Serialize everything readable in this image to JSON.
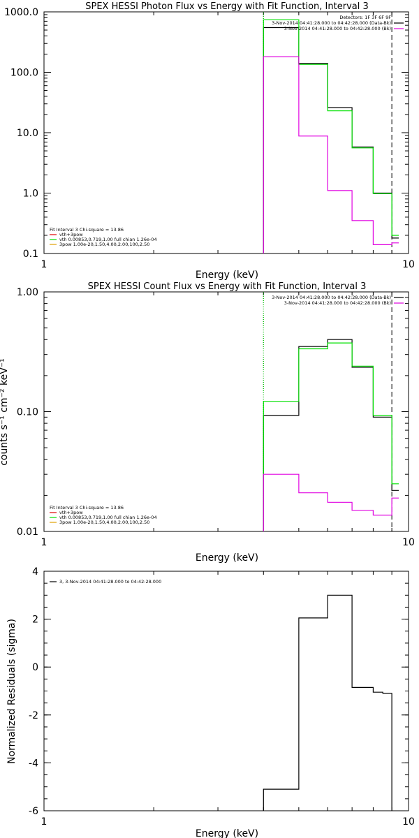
{
  "colors": {
    "black": "#000000",
    "green": "#00e000",
    "magenta": "#e000e0",
    "red": "#e00000",
    "orange": "#e0a000"
  },
  "chart_data": [
    {
      "type": "line",
      "step": true,
      "title": "SPEX HESSI Photon Flux vs Energy with Fit Function, Interval 3",
      "xlabel": "Energy (keV)",
      "ylabel": "",
      "xscale": "log",
      "yscale": "log",
      "xlim": [
        1,
        10
      ],
      "ylim": [
        0.1,
        1000
      ],
      "xticks": [
        {
          "v": 1,
          "label": "1"
        },
        {
          "v": 10,
          "label": "10"
        }
      ],
      "yticks": [
        {
          "v": 0.1,
          "label": "0.1"
        },
        {
          "v": 1,
          "label": "1.0"
        },
        {
          "v": 10,
          "label": "10.0"
        },
        {
          "v": 100,
          "label": "100.0"
        },
        {
          "v": 1000,
          "label": "1000.0"
        }
      ],
      "edges": [
        4,
        5,
        6,
        7,
        8,
        9
      ],
      "vlines": [
        {
          "x": 4,
          "color": "#000000",
          "dash": "1,2"
        },
        {
          "x": 4,
          "color": "#00e000",
          "dash": "1,2"
        },
        {
          "x": 9,
          "color": "#000000",
          "dash": "7,4"
        }
      ],
      "series": [
        {
          "color": "#000000",
          "bins": [
            [
              4,
              5,
              550
            ],
            [
              5,
              6,
              140
            ],
            [
              6,
              7,
              26
            ],
            [
              7,
              8,
              5.8
            ],
            [
              8,
              9,
              1.0
            ],
            [
              9,
              9.4,
              0.18
            ]
          ]
        },
        {
          "color": "#00e000",
          "bins": [
            [
              4,
              5,
              740
            ],
            [
              5,
              6,
              135
            ],
            [
              6,
              7,
              23
            ],
            [
              7,
              8,
              5.6
            ],
            [
              8,
              9,
              0.98
            ],
            [
              9,
              9.4,
              0.2
            ]
          ]
        },
        {
          "color": "#e000e0",
          "bins": [
            [
              4,
              5,
              180
            ],
            [
              5,
              6,
              8.8
            ],
            [
              6,
              7,
              1.1
            ],
            [
              7,
              8,
              0.35
            ],
            [
              8,
              9,
              0.14
            ],
            [
              9,
              9.4,
              0.15
            ]
          ]
        }
      ],
      "legend_right": {
        "header": "Detectors: 1F 3F 6F 9F",
        "entries": [
          {
            "text": "3-Nov-2014 04:41:28.000 to 04:42:28.000 (Data-Bk)",
            "color": "#000000"
          },
          {
            "text": "3-Nov-2014 04:41:28.000 to 04:42:28.000 (Bk)",
            "color": "#e000e0"
          }
        ]
      },
      "legend_left": {
        "header": "Fit Interval 3   Chi-square = 13.86",
        "entries": [
          {
            "text": "vth+3pow",
            "color": "#e00000"
          },
          {
            "text": "vth 0.00853,0.719,1.00  full chian 1.26e-04",
            "color": "#00e000"
          },
          {
            "text": "3pow 1.00e-20,1.50,4.00,2.00,100,2.50",
            "color": "#e0a000"
          }
        ]
      }
    },
    {
      "type": "line",
      "step": true,
      "title": "SPEX HESSI Count Flux vs Energy with Fit Function, Interval 3",
      "xlabel": "Energy (keV)",
      "ylabel": "counts s⁻¹ cm⁻² keV⁻¹",
      "xscale": "log",
      "yscale": "log",
      "xlim": [
        1,
        10
      ],
      "ylim": [
        0.01,
        1
      ],
      "xticks": [
        {
          "v": 1,
          "label": "1"
        },
        {
          "v": 10,
          "label": "10"
        }
      ],
      "yticks": [
        {
          "v": 0.01,
          "label": "0.01"
        },
        {
          "v": 0.1,
          "label": "0.10"
        },
        {
          "v": 1,
          "label": "1.00"
        }
      ],
      "edges": [
        4,
        5,
        6,
        7,
        8,
        9
      ],
      "vlines": [
        {
          "x": 4,
          "color": "#000000",
          "dash": "1,2"
        },
        {
          "x": 4,
          "color": "#00e000",
          "dash": "1,2"
        },
        {
          "x": 9,
          "color": "#000000",
          "dash": "7,4"
        }
      ],
      "series": [
        {
          "color": "#000000",
          "bins": [
            [
              4,
              5,
              0.093
            ],
            [
              5,
              6,
              0.35
            ],
            [
              6,
              7,
              0.4
            ],
            [
              7,
              8,
              0.235
            ],
            [
              8,
              9,
              0.09
            ],
            [
              9,
              9.4,
              0.022
            ]
          ]
        },
        {
          "color": "#00e000",
          "bins": [
            [
              4,
              5,
              0.122
            ],
            [
              5,
              6,
              0.335
            ],
            [
              6,
              7,
              0.375
            ],
            [
              7,
              8,
              0.24
            ],
            [
              8,
              9,
              0.093
            ],
            [
              9,
              9.4,
              0.025
            ]
          ]
        },
        {
          "color": "#e000e0",
          "bins": [
            [
              4,
              5,
              0.03
            ],
            [
              5,
              6,
              0.021
            ],
            [
              6,
              7,
              0.0175
            ],
            [
              7,
              8,
              0.015
            ],
            [
              8,
              9,
              0.0137
            ],
            [
              9,
              9.4,
              0.019
            ]
          ]
        }
      ],
      "legend_right": {
        "header": "",
        "entries": [
          {
            "text": "3-Nov-2014 04:41:28.000 to 04:42:28.000 (Data-Bk)",
            "color": "#000000"
          },
          {
            "text": "3-Nov-2014 04:41:28.000 to 04:42:28.000 (Bk)",
            "color": "#e000e0"
          }
        ]
      },
      "legend_left": {
        "header": "Fit Interval 3   Chi-square = 13.86",
        "entries": [
          {
            "text": "vth+3pow",
            "color": "#e00000"
          },
          {
            "text": "vth 0.00853,0.719,1.00  full chian 1.26e-04",
            "color": "#00e000"
          },
          {
            "text": "3pow 1.00e-20,1.50,4.00,2.00,100,2.50",
            "color": "#e0a000"
          }
        ]
      }
    },
    {
      "type": "line",
      "step": true,
      "title": "",
      "xlabel": "Energy (keV)",
      "ylabel": "Normalized Residuals (sigma)",
      "xscale": "log",
      "yscale": "linear",
      "xlim": [
        1,
        10
      ],
      "ylim": [
        -6,
        4
      ],
      "xticks": [
        {
          "v": 1,
          "label": "1"
        },
        {
          "v": 10,
          "label": "10"
        }
      ],
      "yticks": [
        {
          "v": -6,
          "label": "-6"
        },
        {
          "v": -4,
          "label": "-4"
        },
        {
          "v": -2,
          "label": "-2"
        },
        {
          "v": 0,
          "label": "0"
        },
        {
          "v": 2,
          "label": "2"
        },
        {
          "v": 4,
          "label": "4"
        }
      ],
      "edges": [
        4,
        5,
        6,
        7,
        8,
        9
      ],
      "vlines": [],
      "series": [
        {
          "color": "#000000",
          "bins": [
            [
              4,
              5,
              -5.1
            ],
            [
              5,
              6,
              2.05
            ],
            [
              6,
              7,
              3.0
            ],
            [
              7,
              8,
              -0.85
            ],
            [
              8,
              8.5,
              -1.05
            ],
            [
              8.5,
              9,
              -1.1
            ]
          ]
        }
      ],
      "legend_right": null,
      "legend_left": {
        "header": "",
        "entries": [
          {
            "text": "3,  3-Nov-2014 04:41:28.000 to 04:42:28.000",
            "color": "#000000"
          }
        ]
      }
    }
  ]
}
